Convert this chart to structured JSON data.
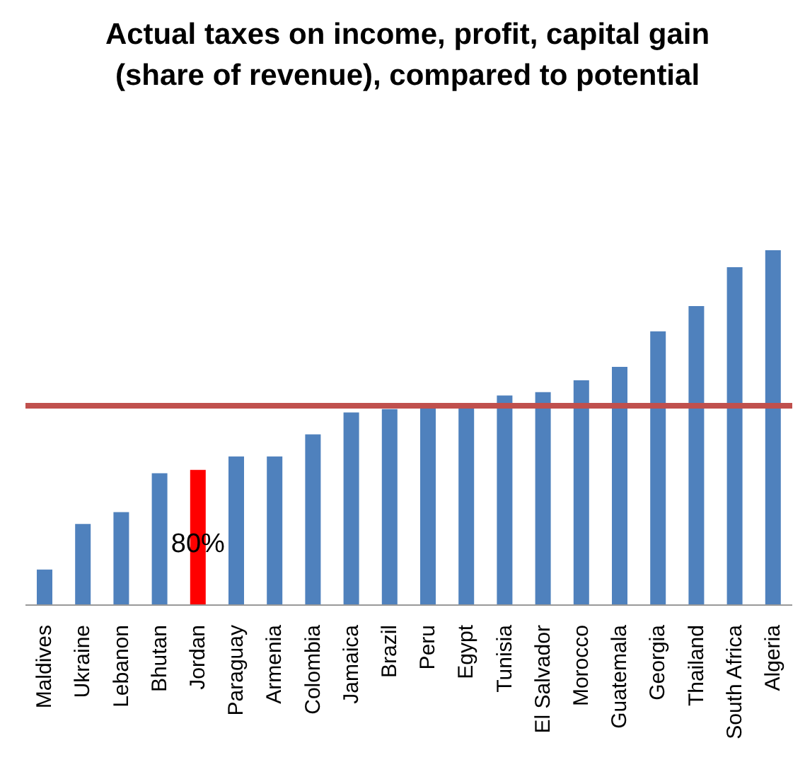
{
  "chart_data": {
    "type": "bar",
    "title": "Actual taxes on income, profit, capital gain (share of  revenue), compared to potential",
    "categories": [
      "Maldives",
      "Ukraine",
      "Lebanon",
      "Bhutan",
      "Jordan",
      "Paraguay",
      "Armenia",
      "Colombia",
      "Jamaica",
      "Brazil",
      "Peru",
      "Egypt",
      "Tunisia",
      "El Salvador",
      "Morocco",
      "Guatemala",
      "Georgia",
      "Thailand",
      "South Africa",
      "Algeria"
    ],
    "values": [
      21,
      48,
      55,
      78,
      80,
      88,
      88,
      101,
      114,
      116,
      118,
      118,
      124,
      126,
      133,
      141,
      162,
      177,
      200,
      210
    ],
    "colors": [
      "#4f81bd",
      "#4f81bd",
      "#4f81bd",
      "#4f81bd",
      "#ff0000",
      "#4f81bd",
      "#4f81bd",
      "#4f81bd",
      "#4f81bd",
      "#4f81bd",
      "#4f81bd",
      "#4f81bd",
      "#4f81bd",
      "#4f81bd",
      "#4f81bd",
      "#4f81bd",
      "#4f81bd",
      "#4f81bd",
      "#4f81bd",
      "#4f81bd"
    ],
    "value_labels": [
      null,
      null,
      null,
      null,
      "80%",
      null,
      null,
      null,
      null,
      null,
      null,
      null,
      null,
      null,
      null,
      null,
      null,
      null,
      null,
      null
    ],
    "ylim": [
      0,
      210
    ],
    "ref_lines": [
      {
        "axis": "y",
        "value": 118,
        "color": "#c0504d"
      }
    ],
    "grid": false,
    "legend": false
  }
}
